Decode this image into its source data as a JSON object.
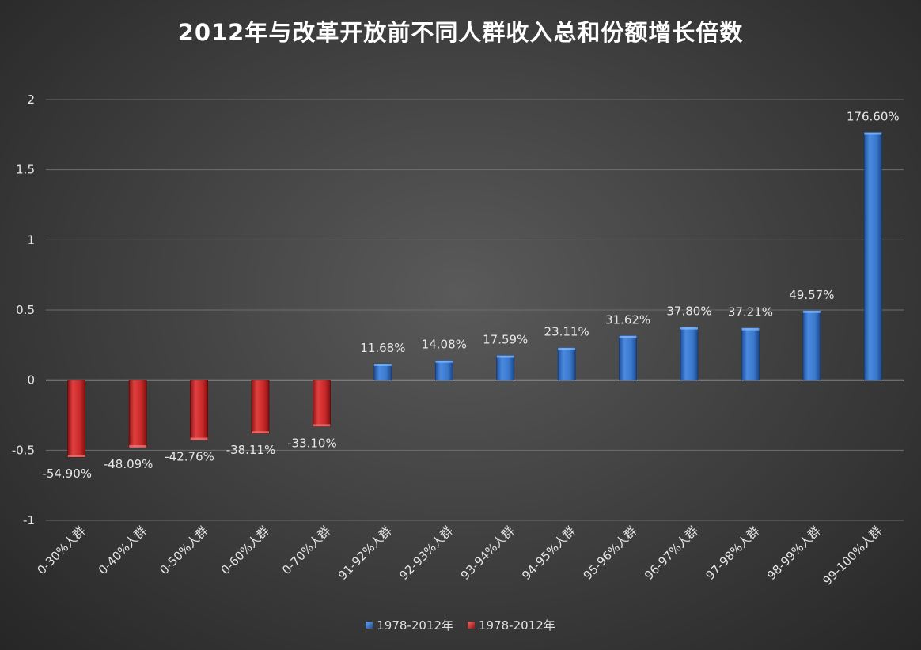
{
  "chart_data": {
    "type": "bar",
    "title": "2012年与改革开放前不同人群收入总和份额增长倍数",
    "categories": [
      "0-30%人群",
      "0-40%人群",
      "0-50%人群",
      "0-60%人群",
      "0-70%人群",
      "91-92%人群",
      "92-93%人群",
      "93-94%人群",
      "94-95%人群",
      "95-96%人群",
      "96-97%人群",
      "97-98%人群",
      "98-99%人群",
      "99-100%人群"
    ],
    "values": [
      -0.549,
      -0.4809,
      -0.4276,
      -0.3811,
      -0.331,
      0.1168,
      0.1408,
      0.1759,
      0.2311,
      0.3162,
      0.378,
      0.3721,
      0.4957,
      1.766
    ],
    "data_labels": [
      "-54.90%",
      "-48.09%",
      "-42.76%",
      "-38.11%",
      "-33.10%",
      "11.68%",
      "14.08%",
      "17.59%",
      "23.11%",
      "31.62%",
      "37.80%",
      "37.21%",
      "49.57%",
      "176.60%"
    ],
    "ylim": [
      -1,
      2
    ],
    "yticks": [
      -1,
      -0.5,
      0,
      0.5,
      1,
      1.5,
      2
    ],
    "ytick_labels": [
      "-1",
      "-0.5",
      "0",
      "0.5",
      "1",
      "1.5",
      "2"
    ],
    "grid": true,
    "legend_position": "bottom",
    "series": [
      {
        "name": "1978-2012年",
        "color": "#3f7fd4"
      },
      {
        "name": "1978-2012年",
        "color": "#cc2a2a"
      }
    ],
    "colors": {
      "positive": "#3f7fd4",
      "negative": "#cc2a2a",
      "text": "#e6e6e6",
      "grid": "#6e6e6e",
      "axis": "#c8c8c8"
    }
  }
}
